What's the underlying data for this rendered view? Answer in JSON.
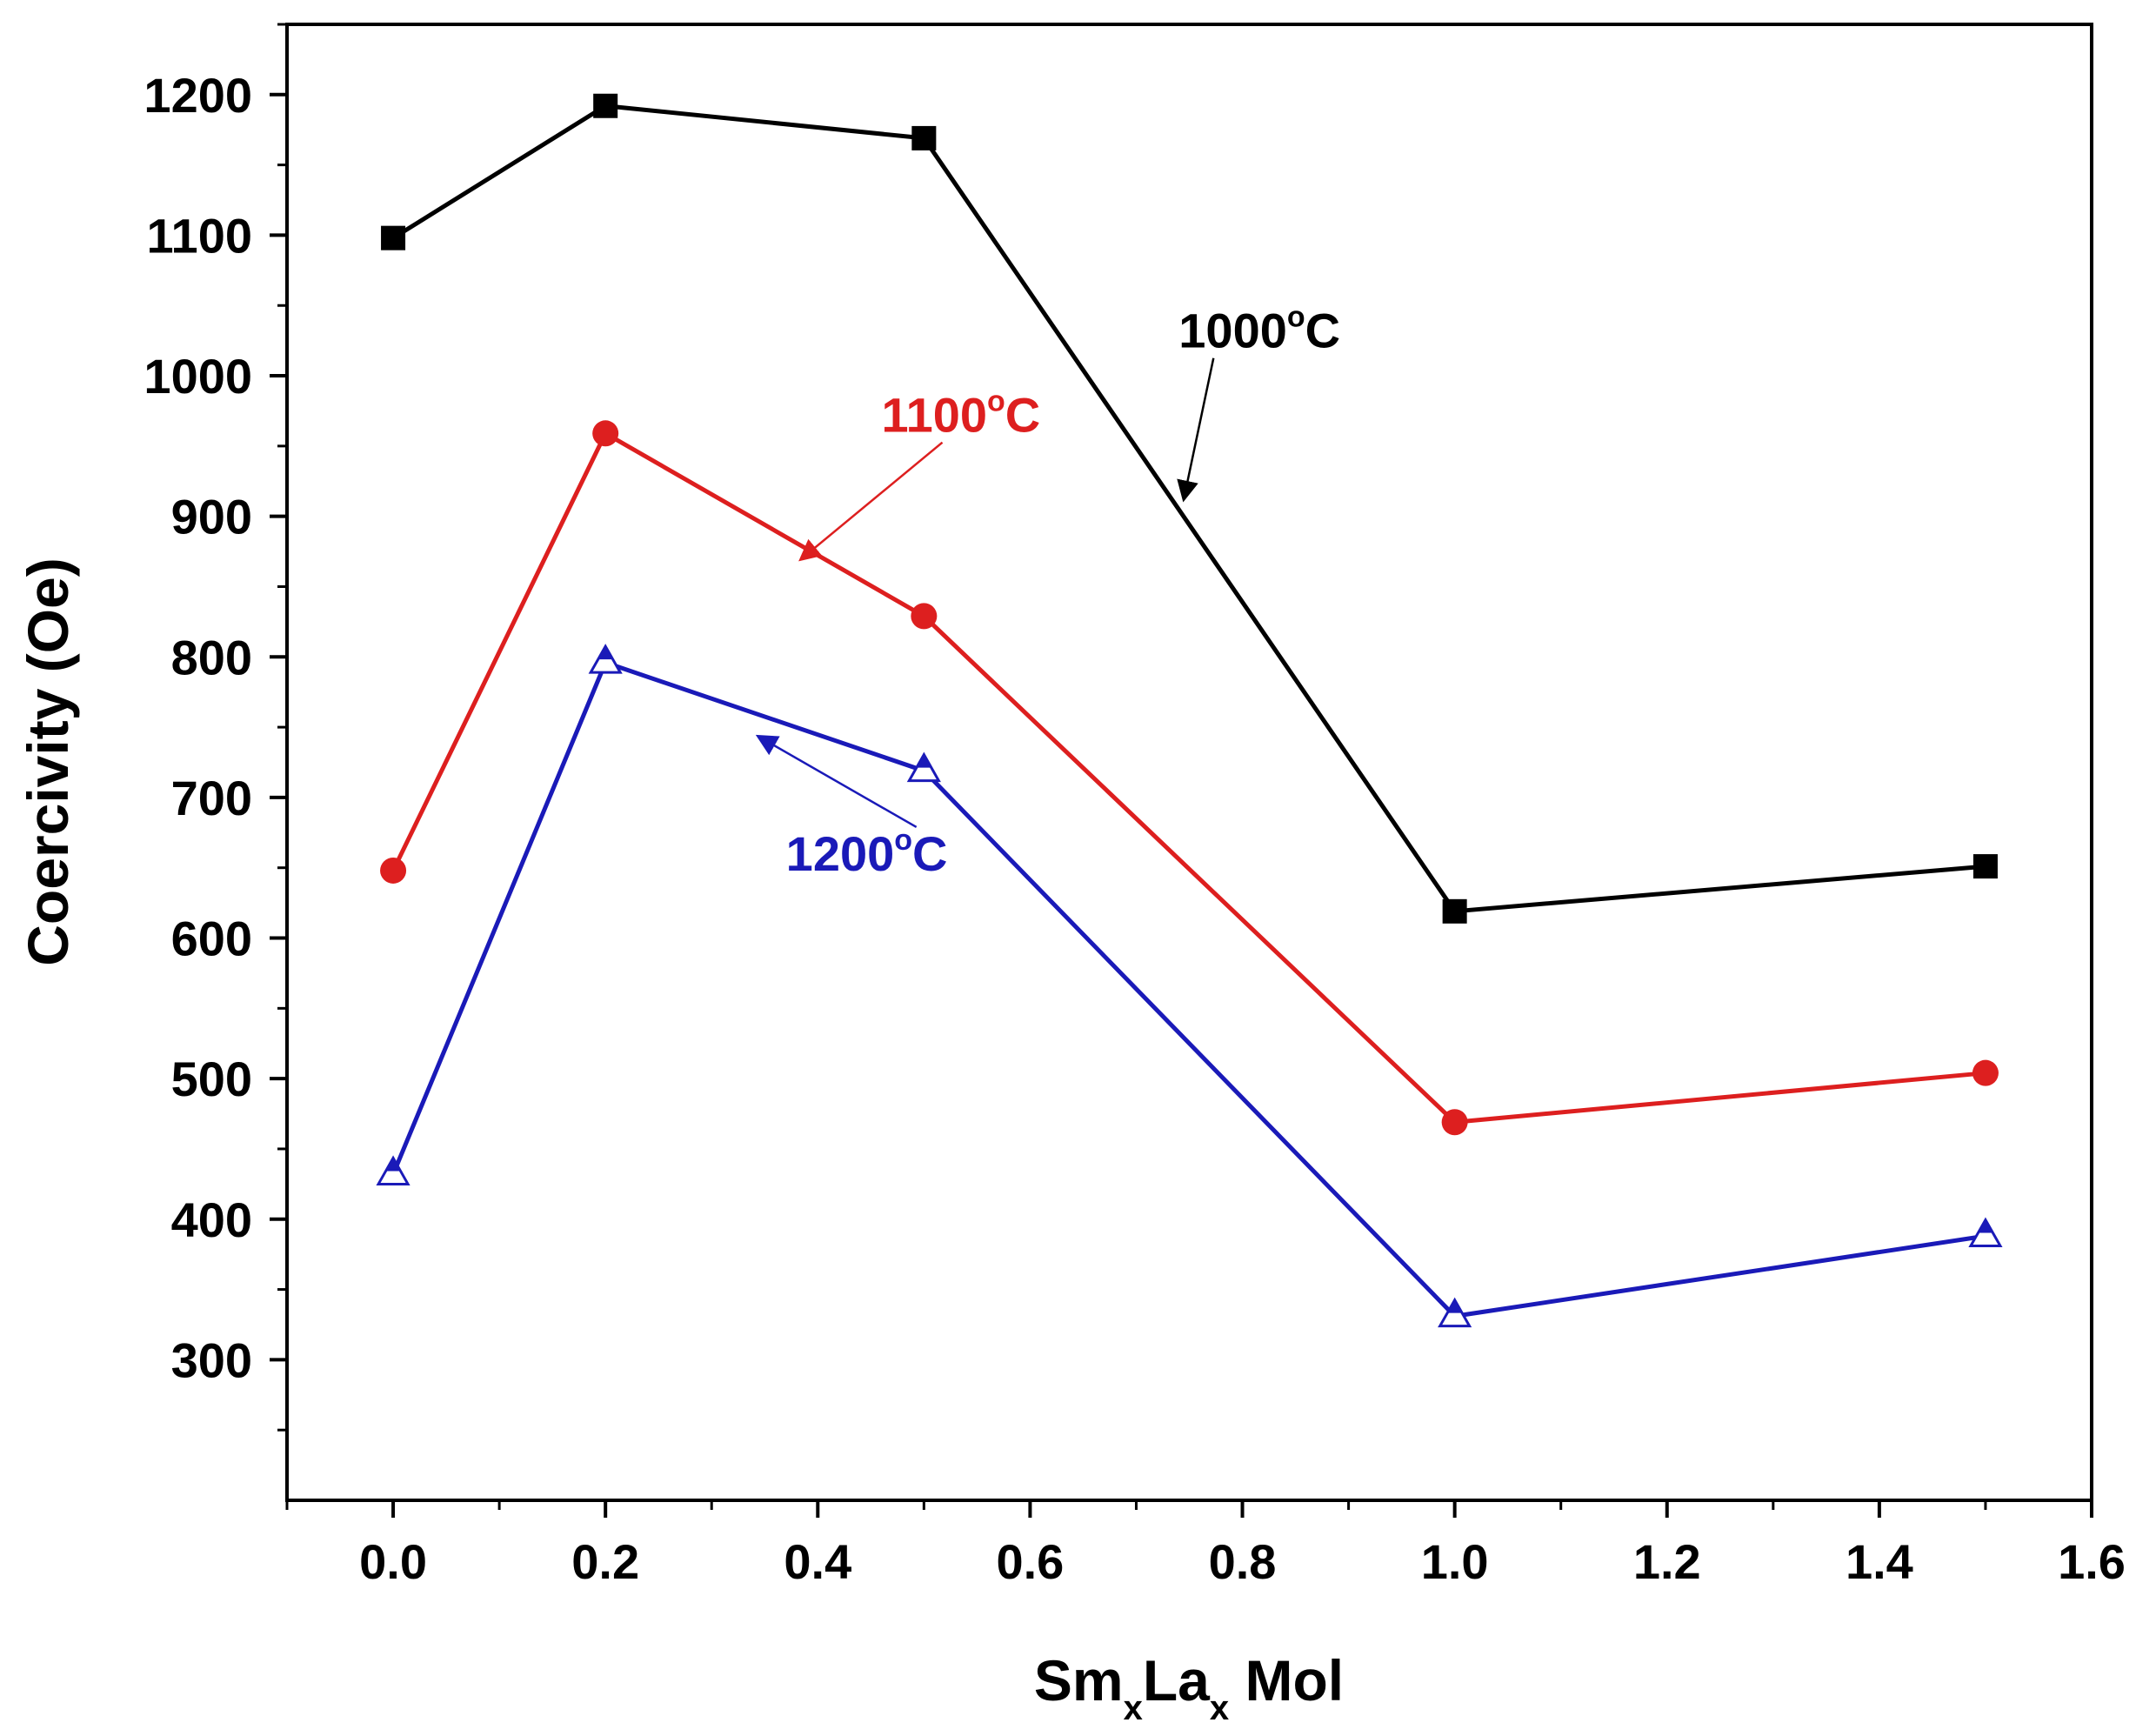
{
  "chart_data": {
    "type": "line",
    "xlabel": {
      "parts": [
        "Sm",
        "x",
        "La",
        "x",
        " Mol"
      ]
    },
    "ylabel": "Coercivity (Oe)",
    "xlim": [
      -0.1,
      1.6
    ],
    "ylim": [
      200,
      1250
    ],
    "xticks": [
      "0.0",
      "0.2",
      "0.4",
      "0.6",
      "0.8",
      "1.0",
      "1.2",
      "1.4",
      "1.6"
    ],
    "yticks": [
      "300",
      "400",
      "500",
      "600",
      "700",
      "800",
      "900",
      "1000",
      "1100",
      "1200"
    ],
    "x": [
      0.0,
      0.2,
      0.5,
      1.0,
      1.5
    ],
    "series": [
      {
        "name": "1000°C",
        "color": "#000000",
        "marker": "square",
        "values": [
          1098,
          1192,
          1169,
          619,
          651
        ],
        "annotation": {
          "main": "1000",
          "sup": "o",
          "unit": "C",
          "at": [
            0.74,
            1020
          ],
          "arrow_to": [
            0.745,
            913
          ]
        }
      },
      {
        "name": "1100°C",
        "color": "#dd1f1f",
        "marker": "circle",
        "values": [
          648,
          959,
          829,
          469,
          504
        ],
        "annotation": {
          "main": "1100",
          "sup": "o",
          "unit": "C",
          "at": [
            0.46,
            960
          ],
          "arrow_to": [
            0.385,
            870
          ]
        }
      },
      {
        "name": "1200°C",
        "color": "#1a1ab8",
        "marker": "triangle-half",
        "values": [
          432,
          796,
          719,
          331,
          388
        ],
        "annotation": {
          "main": "1200",
          "sup": "o",
          "unit": "C",
          "at": [
            0.37,
            648
          ],
          "arrow_to": [
            0.345,
            743
          ]
        }
      }
    ]
  }
}
